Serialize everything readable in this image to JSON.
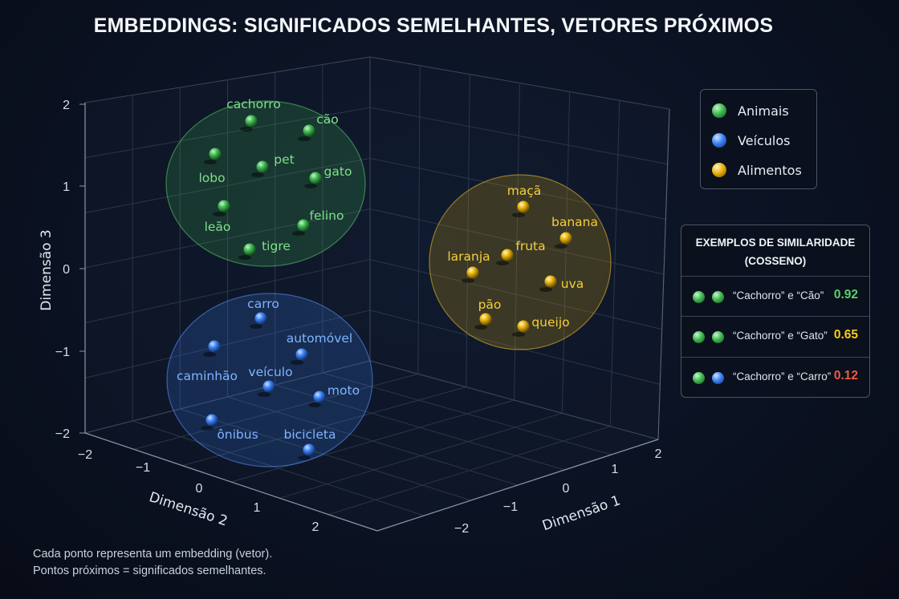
{
  "title": "EMBEDDINGS: SIGNIFICADOS SEMELHANTES, VETORES PRÓXIMOS",
  "chart_data": {
    "type": "scatter",
    "projection": "3d",
    "axes": {
      "x": {
        "label": "Dimensão 1",
        "ticks": [
          "−2",
          "−1",
          "0",
          "1",
          "2"
        ]
      },
      "y": {
        "label": "Dimensão 2",
        "ticks": [
          "−2",
          "−1",
          "0",
          "1",
          "2"
        ]
      },
      "z": {
        "label": "Dimensão 3",
        "ticks": [
          "2",
          "1",
          "0",
          "−1",
          "−2"
        ]
      }
    },
    "grid": true,
    "legend_placement": "top-right",
    "series": [
      {
        "name": "Animais",
        "color": "#3fb950",
        "points": [
          {
            "label": "cachorro",
            "x": -1.6,
            "y": -1.2,
            "z": 1.8
          },
          {
            "label": "cão",
            "x": -1.4,
            "y": -0.9,
            "z": 1.7
          },
          {
            "label": "lobo",
            "x": -1.9,
            "y": -1.4,
            "z": 1.4
          },
          {
            "label": "pet",
            "x": -1.6,
            "y": -1.1,
            "z": 1.25
          },
          {
            "label": "gato",
            "x": -1.4,
            "y": -0.8,
            "z": 1.1
          },
          {
            "label": "leão",
            "x": -1.9,
            "y": -1.3,
            "z": 0.75
          },
          {
            "label": "felino",
            "x": -1.5,
            "y": -0.8,
            "z": 0.55
          },
          {
            "label": "tigre",
            "x": -1.8,
            "y": -1.1,
            "z": 0.25
          }
        ]
      },
      {
        "name": "Veículos",
        "color": "#3b82f6",
        "points": [
          {
            "label": "carro",
            "x": -1.7,
            "y": -1.0,
            "z": -0.6
          },
          {
            "label": "caminhão",
            "x": -2.0,
            "y": -1.5,
            "z": -0.95
          },
          {
            "label": "automóvel",
            "x": -1.5,
            "y": -0.7,
            "z": -1.0
          },
          {
            "label": "veículo",
            "x": -1.7,
            "y": -1.1,
            "z": -1.45
          },
          {
            "label": "moto",
            "x": -1.4,
            "y": -0.6,
            "z": -1.55
          },
          {
            "label": "ônibus",
            "x": -2.0,
            "y": -1.5,
            "z": -1.8
          },
          {
            "label": "bicicleta",
            "x": -1.5,
            "y": -0.8,
            "z": -2.0
          }
        ]
      },
      {
        "name": "Alimentos",
        "color": "#eab308",
        "points": [
          {
            "label": "maçã",
            "x": 1.2,
            "y": 0.9,
            "z": 0.8
          },
          {
            "label": "banana",
            "x": 1.5,
            "y": 1.2,
            "z": 0.45
          },
          {
            "label": "fruta",
            "x": 1.2,
            "y": 0.9,
            "z": 0.2
          },
          {
            "label": "laranja",
            "x": 0.9,
            "y": 0.7,
            "z": 0.0
          },
          {
            "label": "uva",
            "x": 1.5,
            "y": 1.2,
            "z": -0.1
          },
          {
            "label": "pão",
            "x": 0.9,
            "y": 0.7,
            "z": -0.6
          },
          {
            "label": "queijo",
            "x": 1.3,
            "y": 1.0,
            "z": -0.75
          }
        ]
      }
    ]
  },
  "similarity": {
    "title_line1": "EXEMPLOS DE SIMILARIDADE",
    "title_line2": "(COSSENO)",
    "rows": [
      {
        "text": "“Cachorro” e “Cão”",
        "value": "0.92",
        "value_color": "#5ad16a",
        "dot1": "#3fb950",
        "dot2": "#3fb950"
      },
      {
        "text": "“Cachorro” e “Gato”",
        "value": "0.65",
        "value_color": "#facc15",
        "dot1": "#3fb950",
        "dot2": "#3fb950"
      },
      {
        "text": "“Cachorro” e “Carro”",
        "value": "0.12",
        "value_color": "#ef5b3f",
        "dot1": "#3fb950",
        "dot2": "#3b82f6"
      }
    ]
  },
  "footnote": {
    "line1": "Cada ponto representa um embedding (vetor).",
    "line2": "Pontos próximos = significados semelhantes."
  }
}
